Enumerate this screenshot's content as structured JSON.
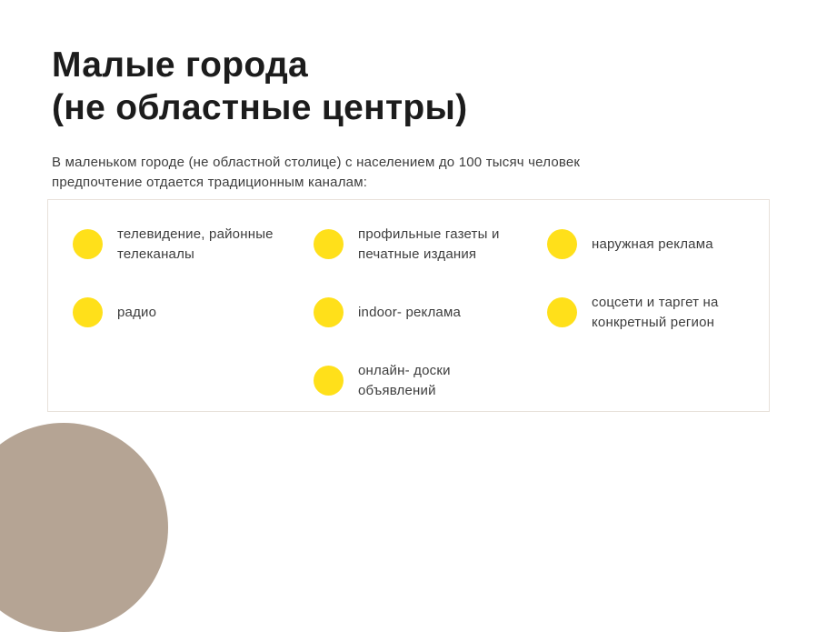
{
  "slide": {
    "title": "Малые города\n(не областные центры)",
    "subtitle": "В маленьком городе (не областной столице) с населением до 100 тысяч человек\nпредпочтение отдается традиционным каналам:",
    "card": {
      "columns": [
        {
          "items": [
            {
              "icon": "bullet-circle",
              "text": "телевидение, районные\nтелеканалы"
            },
            {
              "icon": "bullet-circle",
              "text": "радио"
            }
          ]
        },
        {
          "items": [
            {
              "icon": "bullet-circle",
              "text": "профильные газеты и\nпечатные издания"
            },
            {
              "icon": "bullet-circle",
              "text": "indoor- реклама"
            },
            {
              "icon": "bullet-circle",
              "text": "онлайн- доски\nобъявлений"
            }
          ]
        },
        {
          "items": [
            {
              "icon": "bullet-circle",
              "text": "наружная реклама"
            },
            {
              "icon": "bullet-circle",
              "text": "соцсети и таргет на\nконкретный регион"
            }
          ]
        }
      ]
    },
    "theme": {
      "accent_yellow": "#FFE01A",
      "decorative_tan": "#B5A494",
      "card_border": "#E8E1DA",
      "title_color": "#1C1C1C",
      "body_text_color": "#3D3D3D",
      "background": "#FFFFFF"
    }
  }
}
